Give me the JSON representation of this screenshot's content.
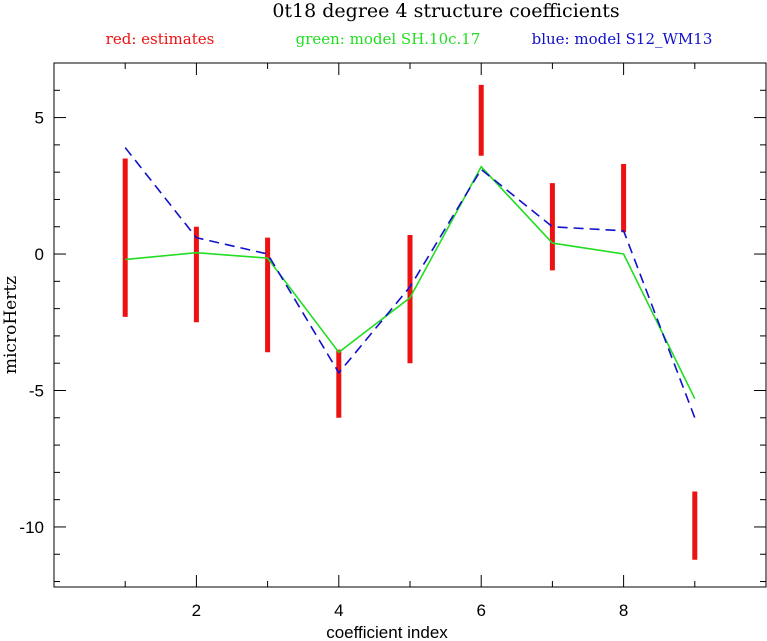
{
  "chart_data": {
    "type": "line",
    "title": "0t18 degree 4 structure coefficients",
    "xlabel": "coefficient index",
    "ylabel": "microHertz",
    "xlim": [
      0,
      10
    ],
    "ylim": [
      -12.2,
      7
    ],
    "xticks": [
      2,
      4,
      6,
      8
    ],
    "yticks": [
      5,
      0,
      -5,
      -10
    ],
    "legend": [
      {
        "text": "red: estimates",
        "color": "#ee1111"
      },
      {
        "text": "green: model SH.10c.17",
        "color": "#22dd22"
      },
      {
        "text": "blue: model S12_WM13",
        "color": "#1111cc"
      }
    ],
    "estimates": {
      "color": "#ee1111",
      "x": [
        1,
        2,
        3,
        4,
        5,
        6,
        7,
        8,
        9
      ],
      "low": [
        -2.3,
        -2.5,
        -3.6,
        -6.0,
        -4.0,
        3.6,
        -0.6,
        0.8,
        -11.2
      ],
      "high": [
        3.5,
        1.0,
        0.6,
        -3.5,
        0.7,
        6.2,
        2.6,
        3.3,
        -8.7
      ]
    },
    "series": [
      {
        "name": "green: model SH.10c.17",
        "color": "#22dd22",
        "style": "solid",
        "x": [
          1,
          2,
          3,
          4,
          5,
          6,
          7,
          8,
          9
        ],
        "values": [
          -0.2,
          0.05,
          -0.15,
          -3.6,
          -1.6,
          3.2,
          0.4,
          0.0,
          -5.3
        ]
      },
      {
        "name": "blue: model S12_WM13",
        "color": "#1111cc",
        "style": "dashed",
        "x": [
          1,
          2,
          3,
          4,
          5,
          6,
          7,
          8,
          9
        ],
        "values": [
          3.9,
          0.6,
          0.0,
          -4.35,
          -1.2,
          3.1,
          1.0,
          0.85,
          -6.0
        ]
      }
    ]
  }
}
